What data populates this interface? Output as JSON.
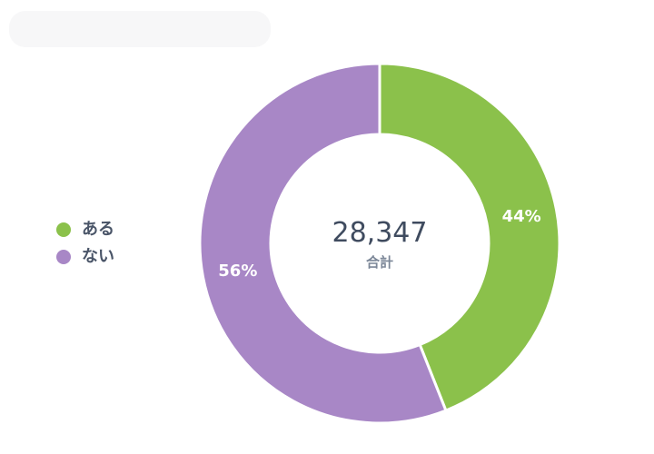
{
  "chart_data": {
    "type": "pie",
    "categories": [
      "ある",
      "ない"
    ],
    "values": [
      44,
      56
    ],
    "series": [
      {
        "values": [
          44,
          56
        ]
      }
    ],
    "labels": [
      "44%",
      "56%"
    ],
    "colors": [
      "#8bc14b",
      "#a887c6"
    ],
    "center": {
      "value": "28,347",
      "label": "合計"
    },
    "legend": {
      "placement": "left",
      "items": [
        {
          "label": "ある",
          "color": "#8bc14b"
        },
        {
          "label": "ない",
          "color": "#a887c6"
        }
      ]
    },
    "title": "",
    "xlabel": "",
    "ylabel": "",
    "grid": false
  }
}
